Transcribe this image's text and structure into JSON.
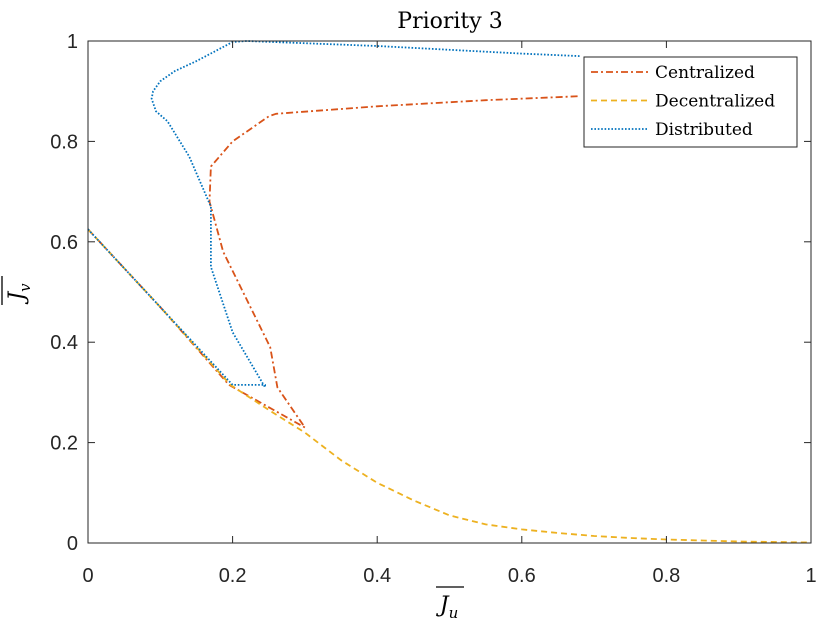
{
  "chart_data": {
    "type": "line",
    "title": "Priority 3",
    "xlabel": "J",
    "xlabel_sub": "u",
    "ylabel": "J",
    "ylabel_sub": "v",
    "xlim": [
      0,
      1
    ],
    "ylim": [
      0,
      1
    ],
    "xticks": [
      0,
      0.2,
      0.4,
      0.6,
      0.8,
      1
    ],
    "xtick_labels": [
      "0",
      "0.2",
      "0.4",
      "0.6",
      "0.8",
      "1"
    ],
    "yticks": [
      0,
      0.2,
      0.4,
      0.6,
      0.8,
      1
    ],
    "ytick_labels": [
      "0",
      "0.2",
      "0.4",
      "0.6",
      "0.8",
      "1"
    ],
    "grid": false,
    "legend_position": "top-right",
    "series": [
      {
        "name": "Centralized",
        "color": "#D95319",
        "dash": "dashdot",
        "points": [
          [
            0,
            0.625
          ],
          [
            0.1,
            0.47
          ],
          [
            0.195,
            0.315
          ],
          [
            0.3,
            0.23
          ],
          [
            0.262,
            0.31
          ],
          [
            0.252,
            0.39
          ],
          [
            0.187,
            0.58
          ],
          [
            0.168,
            0.68
          ],
          [
            0.17,
            0.75
          ],
          [
            0.2,
            0.8
          ],
          [
            0.25,
            0.85
          ],
          [
            0.26,
            0.855
          ],
          [
            0.4,
            0.87
          ],
          [
            0.55,
            0.882
          ],
          [
            0.68,
            0.89
          ]
        ]
      },
      {
        "name": "Decentralized",
        "color": "#EDB120",
        "dash": "dashed",
        "points": [
          [
            0,
            0.625
          ],
          [
            0.1,
            0.47
          ],
          [
            0.197,
            0.315
          ],
          [
            0.25,
            0.265
          ],
          [
            0.3,
            0.22
          ],
          [
            0.35,
            0.165
          ],
          [
            0.4,
            0.12
          ],
          [
            0.45,
            0.085
          ],
          [
            0.5,
            0.055
          ],
          [
            0.55,
            0.037
          ],
          [
            0.6,
            0.027
          ],
          [
            0.65,
            0.02
          ],
          [
            0.7,
            0.014
          ],
          [
            0.75,
            0.01
          ],
          [
            0.8,
            0.007
          ],
          [
            0.85,
            0.005
          ],
          [
            0.9,
            0.003
          ],
          [
            0.95,
            0.002
          ],
          [
            1,
            0.001
          ]
        ]
      },
      {
        "name": "Distributed",
        "color": "#0072BD",
        "dash": "dotted",
        "points": [
          [
            0,
            0.625
          ],
          [
            0.1,
            0.47
          ],
          [
            0.2,
            0.315
          ],
          [
            0.245,
            0.315
          ],
          [
            0.245,
            0.31
          ],
          [
            0.2,
            0.42
          ],
          [
            0.17,
            0.55
          ],
          [
            0.17,
            0.67
          ],
          [
            0.14,
            0.77
          ],
          [
            0.11,
            0.84
          ],
          [
            0.094,
            0.86
          ],
          [
            0.088,
            0.885
          ],
          [
            0.09,
            0.9
          ],
          [
            0.1,
            0.92
          ],
          [
            0.12,
            0.94
          ],
          [
            0.15,
            0.96
          ],
          [
            0.2,
            0.998
          ],
          [
            0.22,
            1.0
          ],
          [
            0.4,
            0.99
          ],
          [
            0.6,
            0.975
          ],
          [
            0.68,
            0.97
          ]
        ]
      }
    ]
  }
}
